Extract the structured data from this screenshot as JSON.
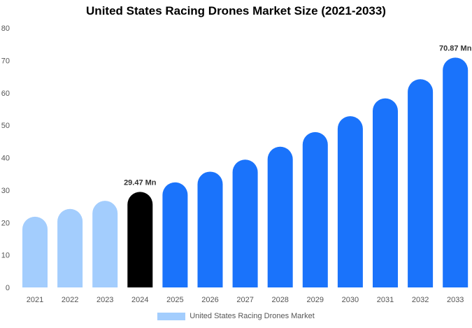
{
  "chart_data": {
    "type": "bar",
    "title": "United States Racing Drones Market Size (2021-2033)",
    "categories": [
      "2021",
      "2022",
      "2023",
      "2024",
      "2025",
      "2026",
      "2027",
      "2028",
      "2029",
      "2030",
      "2031",
      "2032",
      "2033"
    ],
    "series": [
      {
        "name": "United States Racing Drones Market",
        "values": [
          21.8,
          24.2,
          26.7,
          29.47,
          32.4,
          35.7,
          39.4,
          43.4,
          47.9,
          52.8,
          58.3,
          64.2,
          70.87
        ]
      }
    ],
    "data_labels": {
      "3": "29.47 Mn",
      "12": "70.87 Mn"
    },
    "ylim": [
      0,
      80
    ],
    "yticks": [
      0,
      10,
      20,
      30,
      40,
      50,
      60,
      70,
      80
    ],
    "xlabel": "",
    "ylabel": "",
    "grid": false,
    "legend_position": "bottom",
    "colors": {
      "historical": "#a3cdfd",
      "base_year": "#000000",
      "forecast": "#1a73fb"
    }
  }
}
